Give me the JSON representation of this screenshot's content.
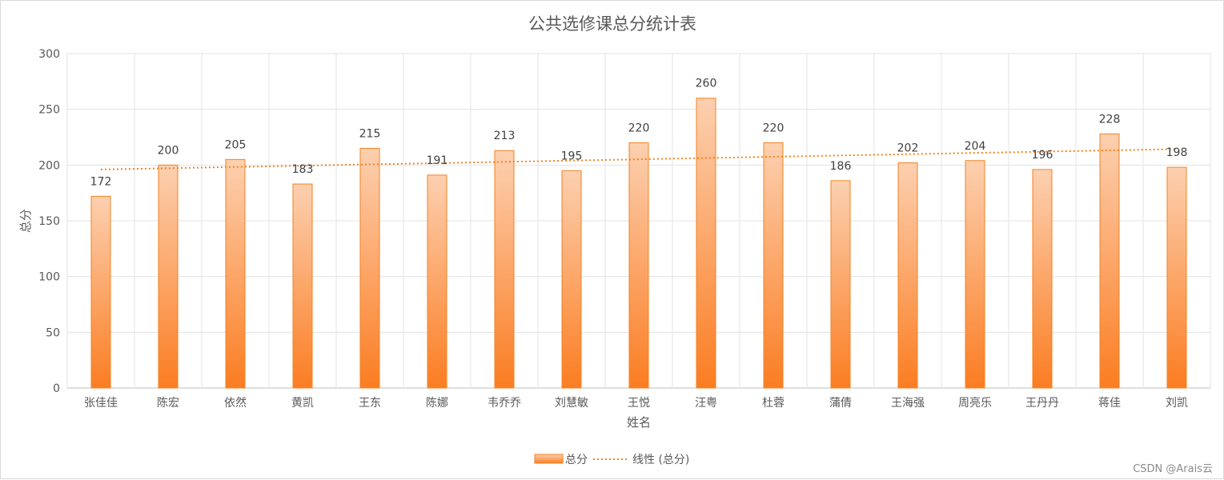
{
  "chart_data": {
    "type": "bar",
    "title": "公共选修课总分统计表",
    "xlabel": "姓名",
    "ylabel": "总分",
    "ylim": [
      0,
      300
    ],
    "yticks": [
      0,
      50,
      100,
      150,
      200,
      250,
      300
    ],
    "grid": true,
    "categories": [
      "张佳佳",
      "陈宏",
      "依然",
      "黄凯",
      "王东",
      "陈娜",
      "韦乔乔",
      "刘慧敏",
      "王悦",
      "汪粤",
      "杜蓉",
      "蒲倩",
      "王海强",
      "周亮乐",
      "王丹丹",
      "蒋佳",
      "刘凯"
    ],
    "series": [
      {
        "name": "总分",
        "values": [
          172,
          200,
          205,
          183,
          215,
          191,
          213,
          195,
          220,
          260,
          220,
          186,
          202,
          204,
          196,
          228,
          198
        ],
        "color_top": "#fcd0b0",
        "color_bottom": "#fb7d22",
        "data_labels": true
      }
    ],
    "trendline": {
      "name": "线性 (总分)",
      "type": "linear",
      "color": "#f58220",
      "style": "dotted"
    },
    "legend_position": "bottom"
  },
  "watermark": "CSDN @Arais云"
}
